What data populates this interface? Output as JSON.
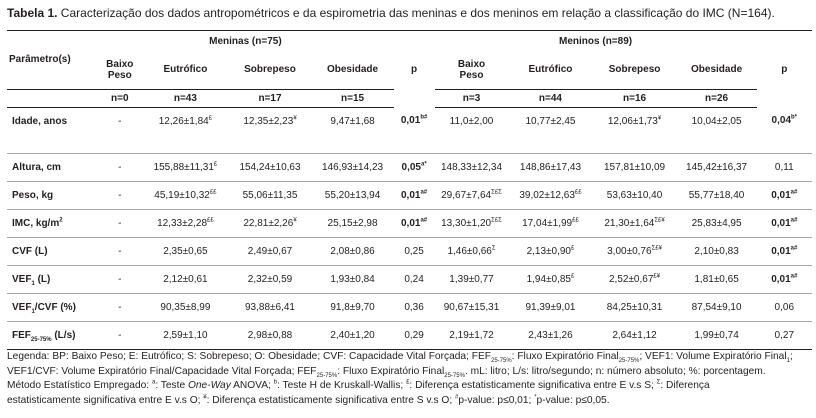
{
  "caption": {
    "label": "Tabela 1.",
    "text": " Caracterização dos dados antropométricos e da espirometria das meninas e dos meninos em relação a classificação do IMC (N=164)."
  },
  "header": {
    "girls_group": "Meninas (n=75)",
    "boys_group": "Meninos (n=89)",
    "param_label": "Parâmetro(s)",
    "p_label": "p",
    "cat_baixo_line1": "Baixo",
    "cat_baixo_line2": "Peso",
    "cat_eutrofico": "Eutrófico",
    "cat_sobrepeso": "Sobrepeso",
    "cat_obesidade": "Obesidade",
    "girls_counts": [
      "n=0",
      "n=43",
      "n=17",
      "n=15"
    ],
    "boys_counts": [
      "n=3",
      "n=44",
      "n=16",
      "n=26"
    ]
  },
  "rows": [
    {
      "param": "Idade, anos",
      "g": [
        "-",
        "12,26±1,84",
        "12,35±2,23",
        "9,47±1,68"
      ],
      "gs": [
        "",
        "£",
        "¥",
        ""
      ],
      "gp": "0,01",
      "gps": "b#",
      "b": [
        "11,0±2,00",
        "10,77±2,45",
        "12,06±1,73",
        "10,04±2,05"
      ],
      "bs": [
        "",
        "",
        "¥",
        ""
      ],
      "bp": "0,04",
      "bps": "b*",
      "gpb": true,
      "bpb": true
    },
    {
      "param": "Altura, cm",
      "g": [
        "-",
        "155,88±11,31",
        "154,24±10,63",
        "146,93±14,23"
      ],
      "gs": [
        "",
        "£",
        "",
        ""
      ],
      "gp": "0,05",
      "gps": "a*",
      "b": [
        "148,33±12,34",
        "148,86±17,43",
        "157,81±10,09",
        "145,42±16,37"
      ],
      "bs": [
        "",
        "",
        "",
        ""
      ],
      "bp": "0,11",
      "bps": "",
      "gpb": true,
      "bpb": false
    },
    {
      "param": "Peso, kg",
      "g": [
        "-",
        "45,19±10,32",
        "55,06±11,35",
        "55,20±13,94"
      ],
      "gs": [
        "",
        "££",
        "",
        ""
      ],
      "gp": "0,01",
      "gps": "a#",
      "b": [
        "29,67±7,64",
        "39,02±12,63",
        "53,63±10,40",
        "55,77±18,40"
      ],
      "bs": [
        "Σ£Σ",
        "££",
        "",
        ""
      ],
      "bp": "0,01",
      "bps": "a#",
      "gpb": true,
      "bpb": true
    },
    {
      "param": "IMC, kg/m",
      "psup": "2",
      "g": [
        "-",
        "12,33±2,28",
        "22,81±2,26",
        "25,15±2,98"
      ],
      "gs": [
        "",
        "££",
        "¥",
        ""
      ],
      "gp": "0,01",
      "gps": "a#",
      "b": [
        "13,30±1,20",
        "17,04±1,99",
        "21,30±1,64",
        "25,83±4,95"
      ],
      "bs": [
        "Σ£Σ",
        "££",
        "Σ£¥",
        ""
      ],
      "bp": "0,01",
      "bps": "a#",
      "gpb": true,
      "bpb": true
    },
    {
      "param": "CVF (L)",
      "g": [
        "-",
        "2,35±0,65",
        "2,49±0,67",
        "2,08±0,86"
      ],
      "gs": [
        "",
        "",
        "",
        ""
      ],
      "gp": "0,25",
      "gps": "",
      "b": [
        "1,46±0,66",
        "2,13±0,90",
        "3,00±0,76",
        "2,10±0,83"
      ],
      "bs": [
        "Σ",
        "£",
        "Σ£¥",
        ""
      ],
      "bp": "0,01",
      "bps": "a#",
      "gpb": false,
      "bpb": true
    },
    {
      "param": "VEF",
      "psub": "1",
      "param2": " (L)",
      "g": [
        "-",
        "2,12±0,61",
        "2,32±0,59",
        "1,93±0,84"
      ],
      "gs": [
        "",
        "",
        "",
        ""
      ],
      "gp": "0,24",
      "gps": "",
      "b": [
        "1,39±0,77",
        "1,94±0,85",
        "2,52±0,67",
        "1,81±0,65"
      ],
      "bs": [
        "",
        "£",
        "£¥",
        ""
      ],
      "bp": "0,01",
      "bps": "a#",
      "gpb": false,
      "bpb": true
    },
    {
      "param": "VEF",
      "psub": "1",
      "param2": "/CVF (%)",
      "g": [
        "-",
        "90,35±8,99",
        "93,88±6,41",
        "91,8±9,70"
      ],
      "gs": [
        "",
        "",
        "",
        ""
      ],
      "gp": "0,36",
      "gps": "",
      "b": [
        "90,67±15,31",
        "91,39±9,01",
        "84,25±10,31",
        "87,54±9,10"
      ],
      "bs": [
        "",
        "",
        "",
        ""
      ],
      "bp": "0,06",
      "bps": "",
      "gpb": false,
      "bpb": false
    },
    {
      "param": "FEF",
      "psub": "25-75%",
      "param2": " (L/s)",
      "g": [
        "-",
        "2,59±1,10",
        "2,98±0,88",
        "2,40±1,20"
      ],
      "gs": [
        "",
        "",
        "",
        ""
      ],
      "gp": "0,29",
      "gps": "",
      "b": [
        "2,19±1,72",
        "2,43±1,26",
        "2,64±1,12",
        "1,99±0,74"
      ],
      "bs": [
        "",
        "",
        "",
        ""
      ],
      "bp": "0,27",
      "bps": "",
      "gpb": false,
      "bpb": false
    }
  ],
  "legend": {
    "l1a": "Legenda: BP: Baixo Peso; E: Eutrófico; S: Sobrepeso; O: Obesidade; CVF: Capacidade Vital Forçada; FEF",
    "l1s1": "25-75%",
    "l1b": ": Fluxo Expiratório Final",
    "l1s2": "25-75%",
    "l1c": "; VEF1: Volume Expiratório Final",
    "l1s3": "1",
    "l1d": ";",
    "l2a": "VEF1/CVF: Volume Expiratório Final/Capacidade Vital Forçada; FEF",
    "l2s1": "25-75%",
    "l2b": ": Fluxo Expiratório Final",
    "l2s2": "25-75%",
    "l2c": ". mL: litro; L/s: litro/segundo; n: número absoluto; %: porcentagem.",
    "l3a": "Método Estatístico Empregado: ",
    "l3sa": "a",
    "l3b": ": Teste ",
    "l3i": "One-Way",
    "l3c": " ANOVA; ",
    "l3sb": "b",
    "l3d": ": Teste H de Kruskall-Wallis; ",
    "l3sc": "£",
    "l3e": ": Diferença estatisticamente significativa entre E v.s S; ",
    "l3sd": "Σ",
    "l3f": ": Diferença",
    "l4a": "estatisticamente significativa entre E v.s O; ",
    "l4sa": "¥",
    "l4b": ": Diferença estatisticamente significativa entre S v.s O; ",
    "l4sb": "#",
    "l4c": "p-value: p≤0,01; ",
    "l4sc": "*",
    "l4d": "p-value: p≤0,05."
  }
}
